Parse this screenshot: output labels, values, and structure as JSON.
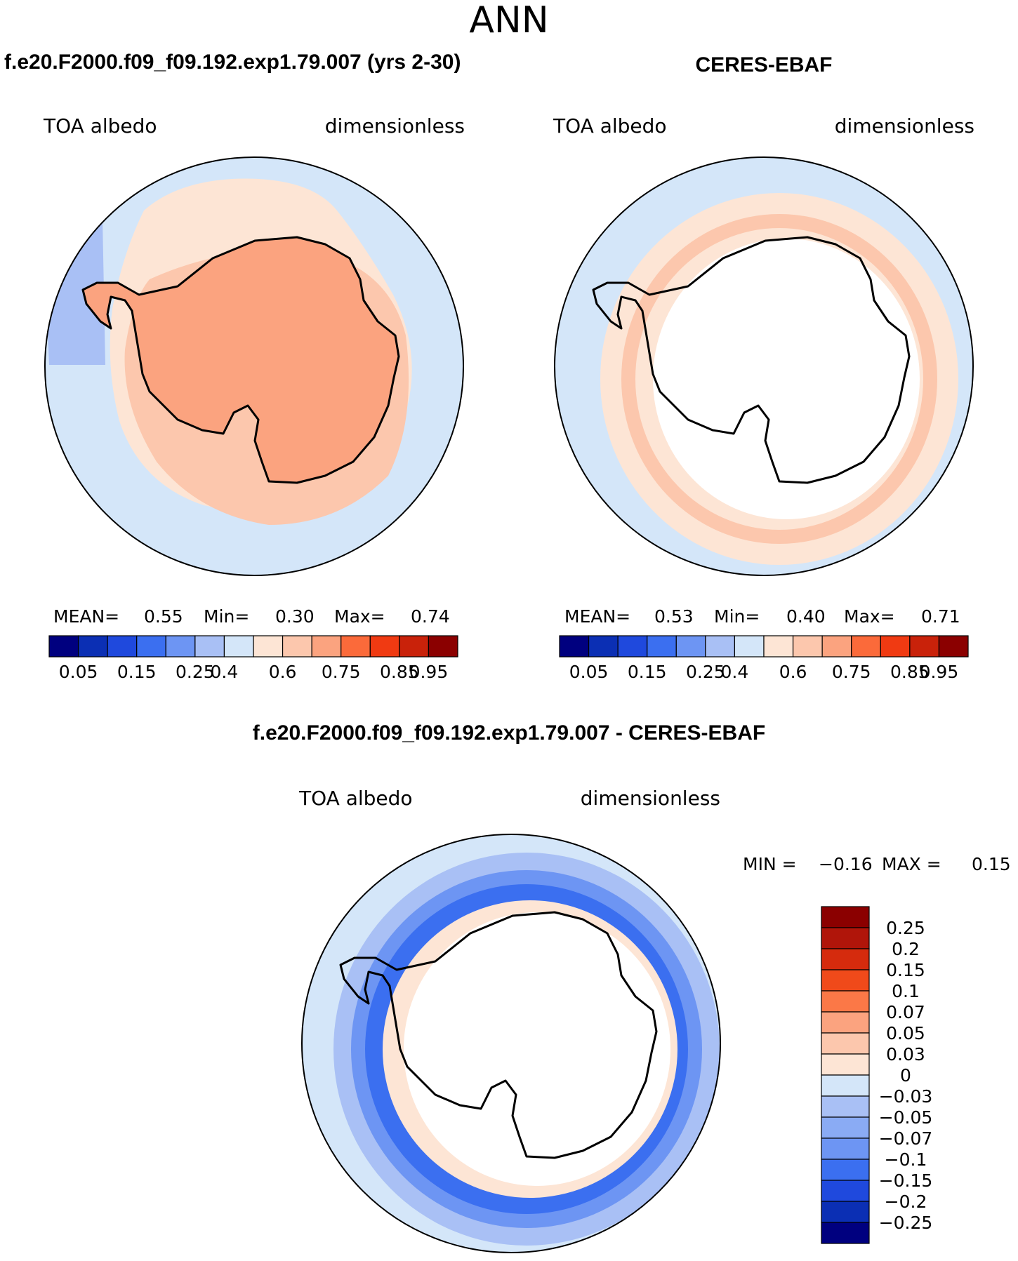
{
  "season": "ANN",
  "colors": {
    "seq": [
      "#00007f",
      "#0b2fb4",
      "#1f49dd",
      "#3b6ff0",
      "#6d95f3",
      "#a9c0f5",
      "#d4e6f9",
      "#fde5d5",
      "#fcc7ad",
      "#fba37f",
      "#fb6a3a",
      "#f03a12",
      "#c9220a",
      "#8b0000"
    ],
    "diff": [
      "#00007f",
      "#0b2fb4",
      "#1f49dd",
      "#3b6ff0",
      "#6d95f3",
      "#a9c0f5",
      "#d4e6f9",
      "#fde5d5",
      "#fcc7ad",
      "#fba37f",
      "#fb6a3a",
      "#f03a12",
      "#c9220a",
      "#8b0000"
    ],
    "land_model": "#fba37f",
    "land_model_light": "#fcc7ad",
    "ocean": "#d4e6f9"
  },
  "panels": [
    {
      "title": "f.e20.F2000.f09_f09.192.exp1.79.007 (yrs 2-30)",
      "variable": "TOA albedo",
      "units": "dimensionless",
      "stats": {
        "mean_label": "MEAN=",
        "mean": "0.55",
        "min_label": "Min=",
        "min": "0.30",
        "max_label": "Max=",
        "max": "0.74"
      }
    },
    {
      "title": "CERES-EBAF",
      "variable": "TOA albedo",
      "units": "dimensionless",
      "stats": {
        "mean_label": "MEAN=",
        "mean": "0.53",
        "min_label": "Min=",
        "min": "0.40",
        "max_label": "Max=",
        "max": "0.71"
      }
    }
  ],
  "diff_panel": {
    "title": "f.e20.F2000.f09_f09.192.exp1.79.007 - CERES-EBAF",
    "variable": "TOA albedo",
    "units": "dimensionless",
    "min_label": "MIN =",
    "min": "−0.16",
    "max_label": "MAX =",
    "max": "0.15"
  },
  "chart_data": [
    {
      "type": "heatmap",
      "title": "f.e20.F2000.f09_f09.192.exp1.79.007 (yrs 2-30)",
      "projection": "south-polar-stereographic",
      "variable": "TOA albedo",
      "units": "dimensionless",
      "mean": 0.55,
      "min": 0.3,
      "max": 0.74,
      "colorbar_labels": [
        "0.05",
        "0.15",
        "0.25",
        "0.4",
        "0.6",
        "0.75",
        "0.85",
        "0.95"
      ],
      "colorbar_levels": [
        0.05,
        0.1,
        0.15,
        0.2,
        0.25,
        0.3,
        0.4,
        0.5,
        0.6,
        0.7,
        0.75,
        0.8,
        0.85,
        0.9,
        0.95
      ]
    },
    {
      "type": "heatmap",
      "title": "CERES-EBAF",
      "projection": "south-polar-stereographic",
      "variable": "TOA albedo",
      "units": "dimensionless",
      "mean": 0.53,
      "min": 0.4,
      "max": 0.71,
      "colorbar_labels": [
        "0.05",
        "0.15",
        "0.25",
        "0.4",
        "0.6",
        "0.75",
        "0.85",
        "0.95"
      ],
      "colorbar_levels": [
        0.05,
        0.1,
        0.15,
        0.2,
        0.25,
        0.3,
        0.4,
        0.5,
        0.6,
        0.7,
        0.75,
        0.8,
        0.85,
        0.9,
        0.95
      ]
    },
    {
      "type": "heatmap",
      "title": "f.e20.F2000.f09_f09.192.exp1.79.007 - CERES-EBAF",
      "projection": "south-polar-stereographic",
      "variable": "TOA albedo",
      "units": "dimensionless",
      "min": -0.16,
      "max": 0.15,
      "colorbar_labels": [
        "0.25",
        "0.2",
        "0.15",
        "0.1",
        "0.07",
        "0.05",
        "0.03",
        "0",
        "−0.03",
        "−0.05",
        "−0.07",
        "−0.1",
        "−0.15",
        "−0.2",
        "−0.25"
      ],
      "legend_position": "right"
    }
  ]
}
